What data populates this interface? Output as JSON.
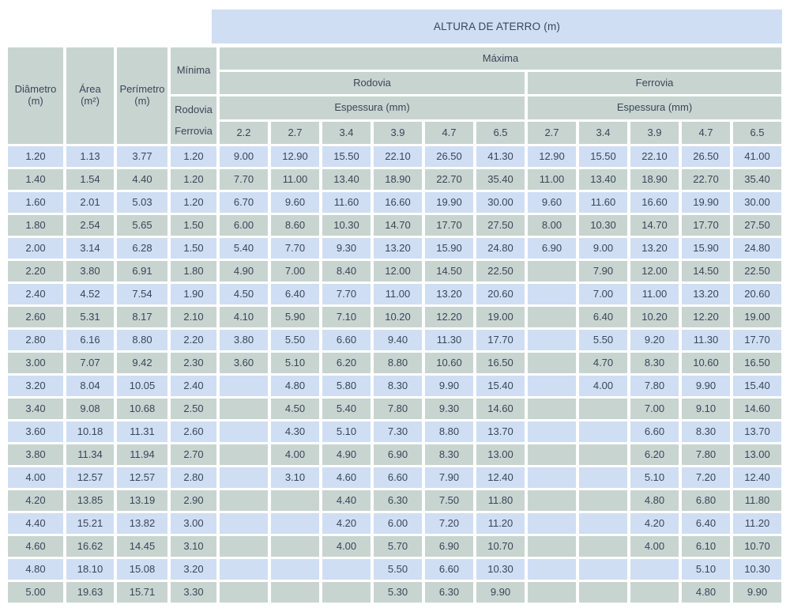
{
  "colors": {
    "banner_bg": "#cfdef3",
    "header_bg": "#c8d4d0",
    "row_blue": "#cfdef3",
    "row_gray": "#c8d4d0",
    "text": "#3a4659"
  },
  "banner": {
    "title": "ALTURA DE ATERRO (m)"
  },
  "table": {
    "col_headers": {
      "diameter": {
        "label": "Diâmetro",
        "unit": "(m)"
      },
      "area": {
        "label": "Área",
        "unit": "(m²)"
      },
      "perimeter": {
        "label": "Perímetro",
        "unit": "(m)"
      },
      "minima": {
        "label": "Mínima",
        "lines": [
          "Rodovia",
          "Ferrovia"
        ]
      },
      "maxima": "Máxima",
      "groups": {
        "rodovia": "Rodovia",
        "ferrovia": "Ferrovia"
      },
      "espessura": "Espessura (mm)",
      "rodovia_thicknesses": [
        "2.2",
        "2.7",
        "3.4",
        "3.9",
        "4.7",
        "6.5"
      ],
      "ferrovia_thicknesses": [
        "2.7",
        "3.4",
        "3.9",
        "4.7",
        "6.5"
      ]
    },
    "rows": [
      [
        "1.20",
        "1.13",
        "3.77",
        "1.20",
        "9.00",
        "12.90",
        "15.50",
        "22.10",
        "26.50",
        "41.30",
        "12.90",
        "15.50",
        "22.10",
        "26.50",
        "41.00"
      ],
      [
        "1.40",
        "1.54",
        "4.40",
        "1.20",
        "7.70",
        "11.00",
        "13.40",
        "18.90",
        "22.70",
        "35.40",
        "11.00",
        "13.40",
        "18.90",
        "22.70",
        "35.40"
      ],
      [
        "1.60",
        "2.01",
        "5.03",
        "1.20",
        "6.70",
        "9.60",
        "11.60",
        "16.60",
        "19.90",
        "30.00",
        "9.60",
        "11.60",
        "16.60",
        "19.90",
        "30.00"
      ],
      [
        "1.80",
        "2.54",
        "5.65",
        "1.50",
        "6.00",
        "8.60",
        "10.30",
        "14.70",
        "17.70",
        "27.50",
        "8.00",
        "10.30",
        "14.70",
        "17.70",
        "27.50"
      ],
      [
        "2.00",
        "3.14",
        "6.28",
        "1.50",
        "5.40",
        "7.70",
        "9.30",
        "13.20",
        "15.90",
        "24.80",
        "6.90",
        "9.00",
        "13.20",
        "15.90",
        "24.80"
      ],
      [
        "2.20",
        "3.80",
        "6.91",
        "1.80",
        "4.90",
        "7.00",
        "8.40",
        "12.00",
        "14.50",
        "22.50",
        "",
        "7.90",
        "12.00",
        "14.50",
        "22.50"
      ],
      [
        "2.40",
        "4.52",
        "7.54",
        "1.90",
        "4.50",
        "6.40",
        "7.70",
        "11.00",
        "13.20",
        "20.60",
        "",
        "7.00",
        "11.00",
        "13.20",
        "20.60"
      ],
      [
        "2.60",
        "5.31",
        "8.17",
        "2.10",
        "4.10",
        "5.90",
        "7.10",
        "10.20",
        "12.20",
        "19.00",
        "",
        "6.40",
        "10.20",
        "12.20",
        "19.00"
      ],
      [
        "2.80",
        "6.16",
        "8.80",
        "2.20",
        "3.80",
        "5.50",
        "6.60",
        "9.40",
        "11.30",
        "17.70",
        "",
        "5.50",
        "9.20",
        "11.30",
        "17.70"
      ],
      [
        "3.00",
        "7.07",
        "9.42",
        "2.30",
        "3.60",
        "5.10",
        "6.20",
        "8.80",
        "10.60",
        "16.50",
        "",
        "4.70",
        "8.30",
        "10.60",
        "16.50"
      ],
      [
        "3.20",
        "8.04",
        "10.05",
        "2.40",
        "",
        "4.80",
        "5.80",
        "8.30",
        "9.90",
        "15.40",
        "",
        "4.00",
        "7.80",
        "9.90",
        "15.40"
      ],
      [
        "3.40",
        "9.08",
        "10.68",
        "2.50",
        "",
        "4.50",
        "5.40",
        "7.80",
        "9.30",
        "14.60",
        "",
        "",
        "7.00",
        "9.10",
        "14.60"
      ],
      [
        "3.60",
        "10.18",
        "11.31",
        "2.60",
        "",
        "4.30",
        "5.10",
        "7.30",
        "8.80",
        "13.70",
        "",
        "",
        "6.60",
        "8.30",
        "13.70"
      ],
      [
        "3.80",
        "11.34",
        "11.94",
        "2.70",
        "",
        "4.00",
        "4.90",
        "6.90",
        "8.30",
        "13.00",
        "",
        "",
        "6.20",
        "7.80",
        "13.00"
      ],
      [
        "4.00",
        "12.57",
        "12.57",
        "2.80",
        "",
        "3.10",
        "4.60",
        "6.60",
        "7.90",
        "12.40",
        "",
        "",
        "5.10",
        "7.20",
        "12.40"
      ],
      [
        "4.20",
        "13.85",
        "13.19",
        "2.90",
        "",
        "",
        "4.40",
        "6.30",
        "7.50",
        "11.80",
        "",
        "",
        "4.80",
        "6.80",
        "11.80"
      ],
      [
        "4.40",
        "15.21",
        "13.82",
        "3.00",
        "",
        "",
        "4.20",
        "6.00",
        "7.20",
        "11.20",
        "",
        "",
        "4.20",
        "6.40",
        "11.20"
      ],
      [
        "4.60",
        "16.62",
        "14.45",
        "3.10",
        "",
        "",
        "4.00",
        "5.70",
        "6.90",
        "10.70",
        "",
        "",
        "4.00",
        "6.10",
        "10.70"
      ],
      [
        "4.80",
        "18.10",
        "15.08",
        "3.20",
        "",
        "",
        "",
        "5.50",
        "6.60",
        "10.30",
        "",
        "",
        "",
        "5.10",
        "10.30"
      ],
      [
        "5.00",
        "19.63",
        "15.71",
        "3.30",
        "",
        "",
        "",
        "5.30",
        "6.30",
        "9.90",
        "",
        "",
        "",
        "4.80",
        "9.90"
      ]
    ]
  }
}
